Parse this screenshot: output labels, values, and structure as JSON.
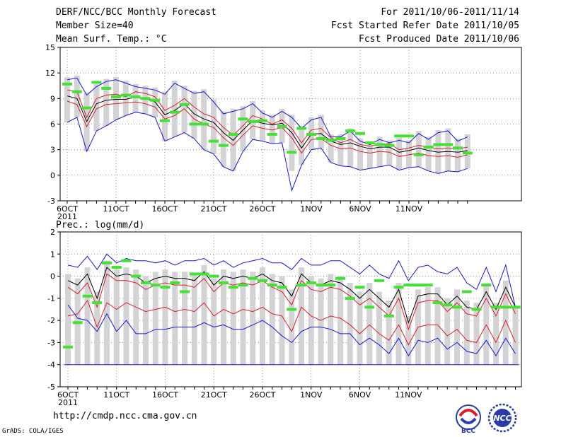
{
  "header": {
    "left_line1": "DERF/NCC/BCC Monthly Forecast",
    "left_line2": "Member Size=40",
    "left_line3": "Mean Surf. Temp.: °C",
    "right_line1": "For 2011/10/06-2011/11/14",
    "right_line2": "Fcst Started Refer Date 2011/10/05",
    "right_line3": "Fcst Produced Date 2011/10/06"
  },
  "footer": {
    "url": "http://cmdp.ncc.cma.gov.cn",
    "grads": "GrADS: COLA/IGES",
    "logo_bcc": "BCC",
    "logo_ncc": "NCC"
  },
  "colors": {
    "box": "#d3d3d6",
    "mean": "#000000",
    "spread": "#d81e2a",
    "extreme": "#1515d8",
    "obs": "#44e034"
  },
  "chart_data": [
    {
      "type": "line",
      "title": "Mean Surf. Temp.: °C",
      "ylim": [
        -3,
        15
      ],
      "yticks": [
        -3,
        0,
        3,
        6,
        9,
        12,
        15
      ],
      "ytick_labels": [
        "-3",
        "0",
        "3",
        "6",
        "9",
        "12",
        "15"
      ],
      "x_tick_days": [
        0,
        5,
        10,
        15,
        20,
        25,
        30,
        35
      ],
      "x_tick_labels": [
        "6OCT",
        "11OCT",
        "16OCT",
        "21OCT",
        "26OCT",
        "1NOV",
        "6NOV",
        "11NOV"
      ],
      "x_year_label": "2011",
      "grid": true,
      "series": [
        {
          "name": "max",
          "values": [
            11.2,
            11.4,
            9.4,
            10.4,
            11.0,
            11.2,
            10.8,
            10.4,
            10.2,
            10.0,
            9.5,
            10.8,
            10.2,
            9.6,
            9.8,
            8.6,
            7.2,
            7.5,
            7.8,
            8.4,
            7.3,
            6.8,
            7.5,
            6.8,
            5.5,
            6.5,
            6.8,
            4.5,
            4.5,
            5.2,
            4.0,
            3.6,
            4.2,
            3.8,
            4.1,
            3.8,
            4.9,
            4.2,
            5.0,
            5.2,
            4.0,
            4.5
          ]
        },
        {
          "name": "upper",
          "values": [
            10.0,
            9.8,
            6.8,
            9.0,
            9.4,
            9.5,
            9.2,
            9.8,
            9.6,
            9.2,
            7.6,
            8.2,
            9.0,
            8.0,
            7.2,
            6.8,
            5.6,
            4.7,
            5.8,
            7.0,
            6.6,
            6.0,
            6.5,
            5.5,
            3.8,
            5.3,
            5.5,
            4.4,
            3.8,
            4.2,
            3.6,
            3.4,
            3.6,
            3.7,
            3.0,
            3.2,
            3.5,
            3.3,
            3.1,
            3.2,
            3.1,
            3.3
          ]
        },
        {
          "name": "mean",
          "values": [
            9.3,
            9.0,
            6.3,
            8.4,
            8.8,
            8.9,
            8.9,
            9.2,
            9.0,
            8.6,
            7.1,
            7.6,
            8.4,
            7.2,
            6.6,
            6.2,
            5.0,
            4.1,
            5.3,
            6.4,
            6.1,
            5.9,
            6.1,
            5.0,
            3.2,
            4.8,
            4.9,
            4.0,
            3.6,
            3.8,
            3.4,
            3.1,
            3.3,
            3.3,
            2.7,
            2.9,
            3.2,
            2.9,
            2.7,
            2.8,
            2.7,
            2.9
          ]
        },
        {
          "name": "lower",
          "values": [
            8.7,
            8.3,
            5.7,
            7.8,
            8.3,
            8.4,
            8.5,
            8.6,
            8.4,
            8.0,
            6.6,
            7.0,
            7.8,
            6.6,
            6.0,
            5.6,
            4.4,
            3.5,
            4.7,
            5.8,
            5.5,
            5.3,
            5.6,
            4.4,
            2.6,
            4.2,
            4.3,
            3.5,
            3.1,
            3.2,
            2.8,
            2.6,
            2.8,
            2.7,
            2.2,
            2.4,
            2.6,
            2.3,
            2.2,
            2.3,
            2.1,
            2.4
          ]
        },
        {
          "name": "min",
          "values": [
            6.2,
            6.8,
            2.8,
            5.2,
            5.8,
            6.5,
            7.0,
            7.4,
            7.2,
            6.8,
            4.0,
            4.5,
            5.0,
            4.3,
            3.0,
            2.5,
            1.0,
            0.5,
            2.8,
            4.2,
            4.0,
            3.7,
            3.8,
            -1.8,
            1.2,
            3.0,
            3.2,
            1.5,
            1.1,
            1.0,
            0.6,
            0.8,
            1.0,
            1.2,
            0.6,
            0.9,
            1.0,
            0.5,
            0.2,
            0.5,
            0.4,
            0.8
          ]
        },
        {
          "name": "obs",
          "values": [
            10.7,
            9.8,
            7.9,
            10.9,
            10.2,
            9.2,
            9.4,
            9.2,
            9.0,
            8.8,
            6.4,
            7.4,
            8.3,
            6.0,
            6.0,
            4.0,
            3.5,
            4.8,
            6.6,
            6.3,
            6.4,
            4.8,
            5.7,
            2.7,
            5.5,
            4.8,
            4.3,
            4.1,
            4.3,
            5.2,
            4.9,
            3.8,
            3.6,
            3.5,
            4.6,
            4.6,
            2.4,
            3.3,
            3.6,
            3.6,
            3.2,
            2.6
          ]
        }
      ]
    },
    {
      "type": "line",
      "title": "Prec.: log(mm/d)",
      "ylim": [
        -5,
        2
      ],
      "yticks": [
        -5,
        -4,
        -3,
        -2,
        -1,
        0,
        1,
        2
      ],
      "ytick_labels": [
        "-5",
        "-4",
        "-3",
        "-2",
        "-1",
        "0",
        "1",
        "2"
      ],
      "x_tick_days": [
        0,
        5,
        10,
        15,
        20,
        25,
        30,
        35
      ],
      "x_tick_labels": [
        "6OCT",
        "11OCT",
        "16OCT",
        "21OCT",
        "26OCT",
        "1NOV",
        "6NOV",
        "11NOV"
      ],
      "x_year_label": "2011",
      "baseline": -4,
      "grid": true,
      "series": [
        {
          "name": "max",
          "values": [
            0.5,
            0.4,
            0.9,
            0.3,
            1.0,
            0.6,
            0.8,
            0.7,
            0.7,
            0.6,
            0.7,
            0.5,
            0.7,
            0.7,
            0.8,
            0.5,
            0.7,
            0.4,
            0.6,
            0.7,
            0.8,
            0.6,
            0.6,
            0.3,
            0.8,
            0.5,
            0.5,
            0.7,
            0.7,
            0.4,
            0.1,
            0.5,
            0.1,
            -0.1,
            0.7,
            -0.2,
            0.4,
            0.5,
            0.2,
            0.1,
            0.4,
            -0.3,
            -0.6,
            0.4,
            -0.7,
            0.5,
            -1.4
          ]
        },
        {
          "name": "mean",
          "values": [
            -0.2,
            -0.4,
            0.1,
            -1.0,
            0.4,
            0.0,
            0.1,
            0.0,
            -0.3,
            -0.1,
            0.0,
            -0.1,
            -0.1,
            -0.2,
            0.2,
            -0.4,
            0.0,
            -0.1,
            0.0,
            -0.1,
            0.1,
            -0.2,
            -0.3,
            -0.9,
            0.1,
            -0.3,
            -0.4,
            -0.2,
            -0.3,
            -0.6,
            -1.0,
            -0.6,
            -1.0,
            -1.4,
            -0.6,
            -2.1,
            -0.9,
            -0.8,
            -0.8,
            -1.3,
            -0.9,
            -1.4,
            -1.5,
            -0.7,
            -1.5,
            -0.5,
            -1.4
          ]
        },
        {
          "name": "upper",
          "values": [
            -0.5,
            -0.8,
            -0.3,
            -1.4,
            0.1,
            -0.2,
            -0.2,
            -0.3,
            -0.6,
            -0.4,
            -0.3,
            -0.4,
            -0.4,
            -0.5,
            -0.1,
            -0.7,
            -0.3,
            -0.4,
            -0.3,
            -0.4,
            -0.2,
            -0.5,
            -0.7,
            -1.3,
            -0.2,
            -0.6,
            -0.7,
            -0.5,
            -0.6,
            -0.9,
            -1.3,
            -1.0,
            -1.4,
            -1.8,
            -1.0,
            -2.4,
            -1.2,
            -1.1,
            -1.1,
            -1.6,
            -1.2,
            -1.7,
            -1.8,
            -1.0,
            -1.8,
            -0.8,
            -1.7
          ]
        },
        {
          "name": "lower",
          "values": [
            -1.8,
            -1.7,
            -1.1,
            -2.3,
            -1.2,
            -1.5,
            -1.2,
            -1.4,
            -1.6,
            -1.5,
            -1.4,
            -1.6,
            -1.5,
            -1.6,
            -1.2,
            -1.8,
            -1.5,
            -1.7,
            -1.5,
            -1.6,
            -1.4,
            -1.7,
            -1.8,
            -2.5,
            -1.4,
            -1.8,
            -2.0,
            -1.8,
            -1.9,
            -2.2,
            -2.6,
            -2.2,
            -2.6,
            -2.9,
            -2.2,
            -3.1,
            -2.3,
            -2.2,
            -2.2,
            -2.7,
            -2.4,
            -2.9,
            -3.0,
            -2.2,
            -3.0,
            -2.0,
            -3.0
          ]
        },
        {
          "name": "min",
          "values": [
            -1.3,
            -1.9,
            -2.0,
            -2.5,
            -1.7,
            -2.5,
            -2.0,
            -2.6,
            -2.6,
            -2.4,
            -2.4,
            -2.3,
            -2.3,
            -2.3,
            -2.1,
            -2.3,
            -2.2,
            -2.4,
            -2.4,
            -2.2,
            -2.0,
            -2.3,
            -2.7,
            -3.0,
            -2.5,
            -2.3,
            -2.3,
            -2.4,
            -2.6,
            -2.6,
            -3.1,
            -2.8,
            -3.1,
            -3.5,
            -2.8,
            -3.6,
            -2.9,
            -3.0,
            -2.8,
            -3.3,
            -3.0,
            -3.4,
            -3.5,
            -2.9,
            -3.6,
            -2.8,
            -3.5
          ]
        },
        {
          "name": "obs",
          "values": [
            -3.2,
            -2.1,
            -0.9,
            -1.2,
            0.6,
            0.4,
            0.7,
            0.0,
            -0.3,
            -0.4,
            -0.5,
            -0.3,
            -0.7,
            0.1,
            0.1,
            0.0,
            -0.3,
            -0.5,
            -0.4,
            -0.1,
            -0.2,
            -0.4,
            -0.5,
            -1.5,
            -0.4,
            -0.3,
            -0.4,
            -0.4,
            -0.1,
            -1.0,
            -0.5,
            -1.4,
            -0.2,
            -1.8,
            -0.5,
            -0.4,
            -0.4,
            -0.4,
            -1.2,
            -1.3,
            -1.4,
            -0.7,
            -1.5,
            -0.4,
            -1.4,
            -1.4,
            -1.4
          ]
        }
      ]
    }
  ]
}
